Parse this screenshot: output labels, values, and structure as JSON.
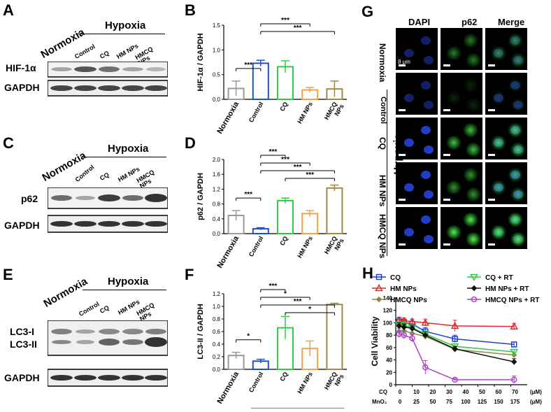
{
  "panels": {
    "A": {
      "letter": "A",
      "normoxia": "Normoxia",
      "hypoxia": "Hypoxia",
      "lanes": [
        "Control",
        "CQ",
        "HM NPs",
        "HMCQ NPs"
      ],
      "rows": [
        "HIF-1α",
        "GAPDH"
      ]
    },
    "C": {
      "letter": "C",
      "normoxia": "Normoxia",
      "hypoxia": "Hypoxia",
      "lanes": [
        "Control",
        "CQ",
        "HM NPs",
        "HMCQ NPs"
      ],
      "rows": [
        "p62",
        "GAPDH"
      ]
    },
    "E": {
      "letter": "E",
      "normoxia": "Normoxia",
      "hypoxia": "Hypoxia",
      "lanes": [
        "Control",
        "CQ",
        "HM NPs",
        "HMCQ NPs"
      ],
      "rows": [
        "LC3-I",
        "LC3-II",
        "GAPDH"
      ]
    },
    "G": {
      "letter": "G",
      "cols": [
        "DAPI",
        "p62",
        "Merge"
      ],
      "rows": [
        "Normoxia",
        "Control",
        "CQ",
        "HM NPs",
        "HMCQ NPs"
      ],
      "group": "Hypoxia",
      "scale": "8 μm"
    }
  },
  "chart_data": [
    {
      "panel": "B",
      "type": "bar",
      "categories": [
        "Normoxia",
        "Control",
        "CQ",
        "HM NPs",
        "HMCQ NPs"
      ],
      "values": [
        0.22,
        0.73,
        0.66,
        0.19,
        0.21
      ],
      "errors": [
        0.15,
        0.06,
        0.12,
        0.05,
        0.16
      ],
      "colors": [
        "#9a9a9a",
        "#1f4fd0",
        "#2ecc40",
        "#f0a24a",
        "#a08a4a"
      ],
      "ylabel": "HIF-1α / GAPDH",
      "ylim": [
        0,
        1.5
      ],
      "yticks": [
        "0.0",
        "0.5",
        "1.0",
        "1.5"
      ],
      "group": "Hypoxia",
      "sig": [
        {
          "a": 0,
          "b": 1,
          "label": "***"
        },
        {
          "a": 1,
          "b": 3,
          "label": "***"
        },
        {
          "a": 1,
          "b": 4,
          "label": "***"
        }
      ]
    },
    {
      "panel": "D",
      "type": "bar",
      "categories": [
        "Normoxia",
        "Control",
        "CQ",
        "HM NPs",
        "HMCQ NPs"
      ],
      "values": [
        0.49,
        0.13,
        0.89,
        0.54,
        1.23
      ],
      "errors": [
        0.13,
        0.03,
        0.07,
        0.08,
        0.08
      ],
      "colors": [
        "#9a9a9a",
        "#1f4fd0",
        "#2ecc40",
        "#f0a24a",
        "#a08a4a"
      ],
      "ylabel": "p62 / GAPDH",
      "ylim": [
        0,
        2.0
      ],
      "yticks": [
        "0.0",
        "0.4",
        "0.8",
        "1.2",
        "1.6",
        "2.0"
      ],
      "group": "Hypoxia",
      "sig": [
        {
          "a": 0,
          "b": 1,
          "label": "***"
        },
        {
          "a": 1,
          "b": 2,
          "label": "***"
        },
        {
          "a": 1,
          "b": 3,
          "label": "***"
        },
        {
          "a": 1,
          "b": 4,
          "label": "***"
        },
        {
          "a": 2,
          "b": 4,
          "label": "***"
        }
      ]
    },
    {
      "panel": "F",
      "type": "bar",
      "categories": [
        "Normoxia",
        "Control",
        "CQ",
        "HM NPs",
        "HMCQ NPs"
      ],
      "values": [
        0.22,
        0.13,
        0.66,
        0.33,
        1.03
      ],
      "errors": [
        0.05,
        0.03,
        0.18,
        0.12,
        0.02
      ],
      "colors": [
        "#9a9a9a",
        "#1f4fd0",
        "#2ecc40",
        "#f0a24a",
        "#a08a4a"
      ],
      "ylabel": "LC3-II / GAPDH",
      "ylim": [
        0,
        1.2
      ],
      "yticks": [
        "0.0",
        "0.2",
        "0.4",
        "0.6",
        "0.8",
        "1.0",
        "1.2"
      ],
      "group": "Hypoxia",
      "sig": [
        {
          "a": 0,
          "b": 1,
          "label": "*"
        },
        {
          "a": 1,
          "b": 2,
          "label": "***"
        },
        {
          "a": 1,
          "b": 3,
          "label": "*"
        },
        {
          "a": 1,
          "b": 4,
          "label": "***"
        },
        {
          "a": 2,
          "b": 4,
          "label": "*"
        }
      ]
    },
    {
      "panel": "H",
      "type": "line",
      "ylabel": "Cell Viability",
      "ylim": [
        0,
        140
      ],
      "yticks": [
        "0",
        "20",
        "40",
        "60",
        "80",
        "100",
        "120",
        "140"
      ],
      "xlim": [
        0,
        80
      ],
      "x": [
        2,
        5,
        10,
        18,
        36,
        72
      ],
      "xaxis1_label": "CQ",
      "xaxis1_ticks": [
        "0",
        "10",
        "20",
        "30",
        "40",
        "50",
        "60",
        "70"
      ],
      "xaxis1_unit": "(μM)",
      "xaxis2_label": "MnO₂",
      "xaxis2_ticks": [
        "0",
        "25",
        "50",
        "75",
        "100",
        "125",
        "150",
        "175"
      ],
      "xaxis2_unit": "(μM)",
      "series": [
        {
          "name": "CQ",
          "color": "#1f3fd0",
          "marker": "square",
          "values": [
            102,
            101,
            98,
            86,
            74,
            65
          ],
          "errors": [
            6,
            5,
            5,
            6,
            6,
            4
          ]
        },
        {
          "name": "HM NPs",
          "color": "#e02a2a",
          "marker": "triangle",
          "values": [
            104,
            103,
            102,
            100,
            95,
            94
          ],
          "errors": [
            5,
            5,
            4,
            6,
            9,
            5
          ]
        },
        {
          "name": "HMCQ NPs",
          "color": "#8a8a50",
          "marker": "diamond",
          "values": [
            86,
            87,
            83,
            78,
            57,
            48
          ],
          "errors": [
            5,
            5,
            5,
            5,
            4,
            4
          ]
        },
        {
          "name": "CQ + RT",
          "color": "#2ecc40",
          "marker": "triangle-down",
          "values": [
            97,
            96,
            92,
            82,
            62,
            53
          ],
          "errors": [
            5,
            5,
            5,
            5,
            4,
            4
          ]
        },
        {
          "name": "HM NPs + RT",
          "color": "#111111",
          "marker": "diamond",
          "values": [
            95,
            93,
            91,
            80,
            58,
            37
          ],
          "errors": [
            5,
            5,
            5,
            5,
            4,
            5
          ]
        },
        {
          "name": "HMCQ NPs + RT",
          "color": "#b040d0",
          "marker": "circle",
          "values": [
            82,
            80,
            75,
            28,
            8,
            8
          ],
          "errors": [
            6,
            6,
            6,
            11,
            2,
            6
          ]
        }
      ]
    }
  ]
}
